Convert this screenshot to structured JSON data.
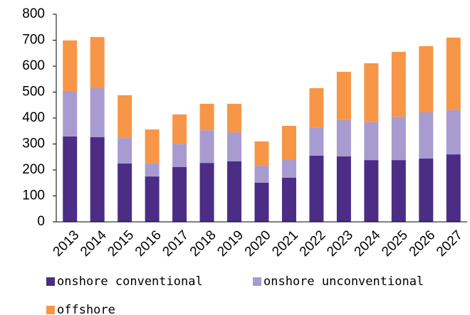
{
  "chart_data": {
    "type": "stacked_bar",
    "categories": [
      "2013",
      "2014",
      "2015",
      "2016",
      "2017",
      "2018",
      "2019",
      "2020",
      "2021",
      "2022",
      "2023",
      "2024",
      "2025",
      "2026",
      "2027"
    ],
    "series": [
      {
        "name": "onshore conventional",
        "color": "#4b2d85",
        "values": [
          329,
          326,
          225,
          175,
          211,
          227,
          233,
          151,
          170,
          255,
          252,
          238,
          238,
          244,
          260
        ]
      },
      {
        "name": "onshore unconventional",
        "color": "#a79bd0",
        "values": [
          175,
          189,
          98,
          52,
          90,
          126,
          112,
          65,
          71,
          109,
          140,
          146,
          167,
          178,
          170
        ]
      },
      {
        "name": "offshore",
        "color": "#f79646",
        "values": [
          195,
          197,
          165,
          129,
          113,
          102,
          110,
          94,
          129,
          151,
          186,
          227,
          250,
          255,
          280
        ]
      }
    ],
    "ylim": [
      0,
      800
    ],
    "yticks": [
      0,
      100,
      200,
      300,
      400,
      500,
      600,
      700,
      800
    ],
    "grid": false
  }
}
